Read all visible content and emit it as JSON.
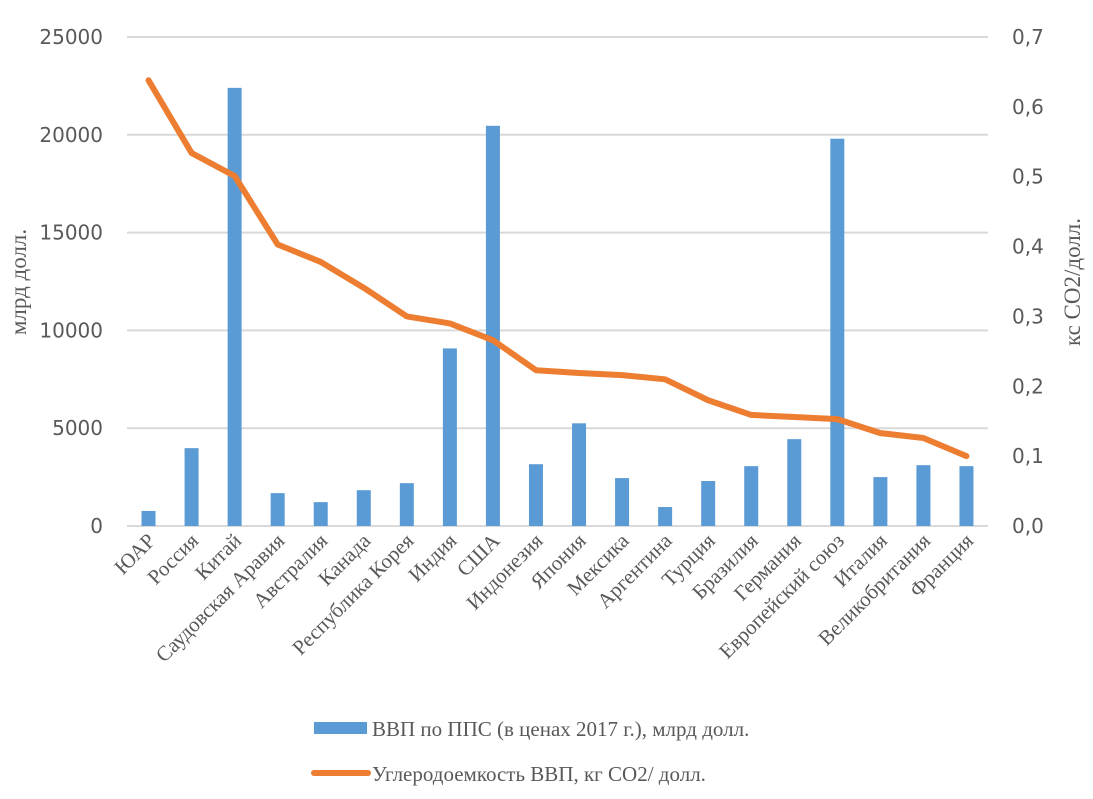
{
  "chart_data": {
    "type": "bar+line",
    "title": "",
    "categories": [
      "ЮАР",
      "Россия",
      "Китай",
      "Саудовская Аравия",
      "Австралия",
      "Канада",
      "Республика  Корея",
      "Индия",
      "США",
      "Индонезия",
      "Япония",
      "Мексика",
      "Аргентина",
      "Турция",
      "Бразилия",
      "Германия",
      "Европейский союз",
      "Италия",
      "Великобритания",
      "Франция"
    ],
    "series": [
      {
        "name": "ВВП по ППС (в ценах 2017 г.), млрд долл.",
        "type": "bar",
        "axis": "left",
        "color": "#5b9bd5",
        "values": [
          770,
          3980,
          22400,
          1680,
          1220,
          1830,
          2190,
          9080,
          20460,
          3160,
          5250,
          2450,
          970,
          2300,
          3060,
          4440,
          19800,
          2500,
          3110,
          3060
        ]
      },
      {
        "name": "Углеродоемкость ВВП, кг СО2/ долл.",
        "type": "line",
        "axis": "right",
        "color": "#ed7d31",
        "values": [
          0.638,
          0.534,
          0.501,
          0.403,
          0.378,
          0.341,
          0.3,
          0.29,
          0.266,
          0.223,
          0.219,
          0.216,
          0.21,
          0.18,
          0.159,
          0.156,
          0.153,
          0.133,
          0.126,
          0.1
        ]
      }
    ],
    "ylabel": "млрд долл.",
    "y2label": "кс СО2/долл.",
    "xlabel": "",
    "ylim": [
      0,
      25000
    ],
    "y2lim": [
      0,
      0.7
    ],
    "yticks": [
      "0",
      "5000",
      "10000",
      "15000",
      "20000",
      "25000"
    ],
    "y2ticks": [
      "0,0",
      "0,1",
      "0,2",
      "0,3",
      "0,4",
      "0,5",
      "0,6",
      "0,7"
    ],
    "grid": true,
    "legend_position": "bottom"
  }
}
